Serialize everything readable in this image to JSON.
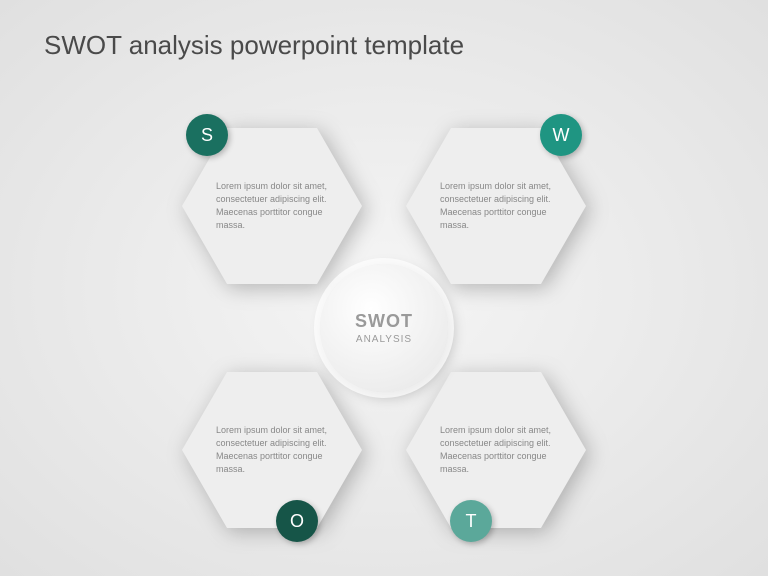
{
  "title": "SWOT analysis powerpoint template",
  "center": {
    "main": "SWOT",
    "sub": "ANALYSIS",
    "bg_gradient_from": "#ffffff",
    "bg_gradient_to": "#e6e6e6",
    "text_color": "#9a9a9a"
  },
  "quadrants": {
    "s": {
      "letter": "S",
      "badge_color": "#1a7060",
      "body": "Lorem ipsum dolor sit amet, consectetuer adipiscing elit. Maecenas porttitor congue massa."
    },
    "w": {
      "letter": "W",
      "badge_color": "#1f9582",
      "body": "Lorem ipsum dolor sit amet, consectetuer adipiscing elit. Maecenas porttitor congue massa."
    },
    "o": {
      "letter": "O",
      "badge_color": "#165548",
      "body": "Lorem ipsum dolor sit amet, consectetuer adipiscing elit. Maecenas porttitor congue massa."
    },
    "t": {
      "letter": "T",
      "badge_color": "#5ba89a",
      "body": "Lorem ipsum dolor sit amet, consectetuer adipiscing elit. Maecenas porttitor congue massa."
    }
  },
  "styling": {
    "hexagon_fill": "#eeeeee",
    "hexagon_text_color": "#888888",
    "hexagon_text_fontsize": 9,
    "title_color": "#4a4a4a",
    "title_fontsize": 26,
    "background_from": "#f5f5f5",
    "background_to": "#e0e0e0",
    "badge_text_color": "#ffffff"
  }
}
